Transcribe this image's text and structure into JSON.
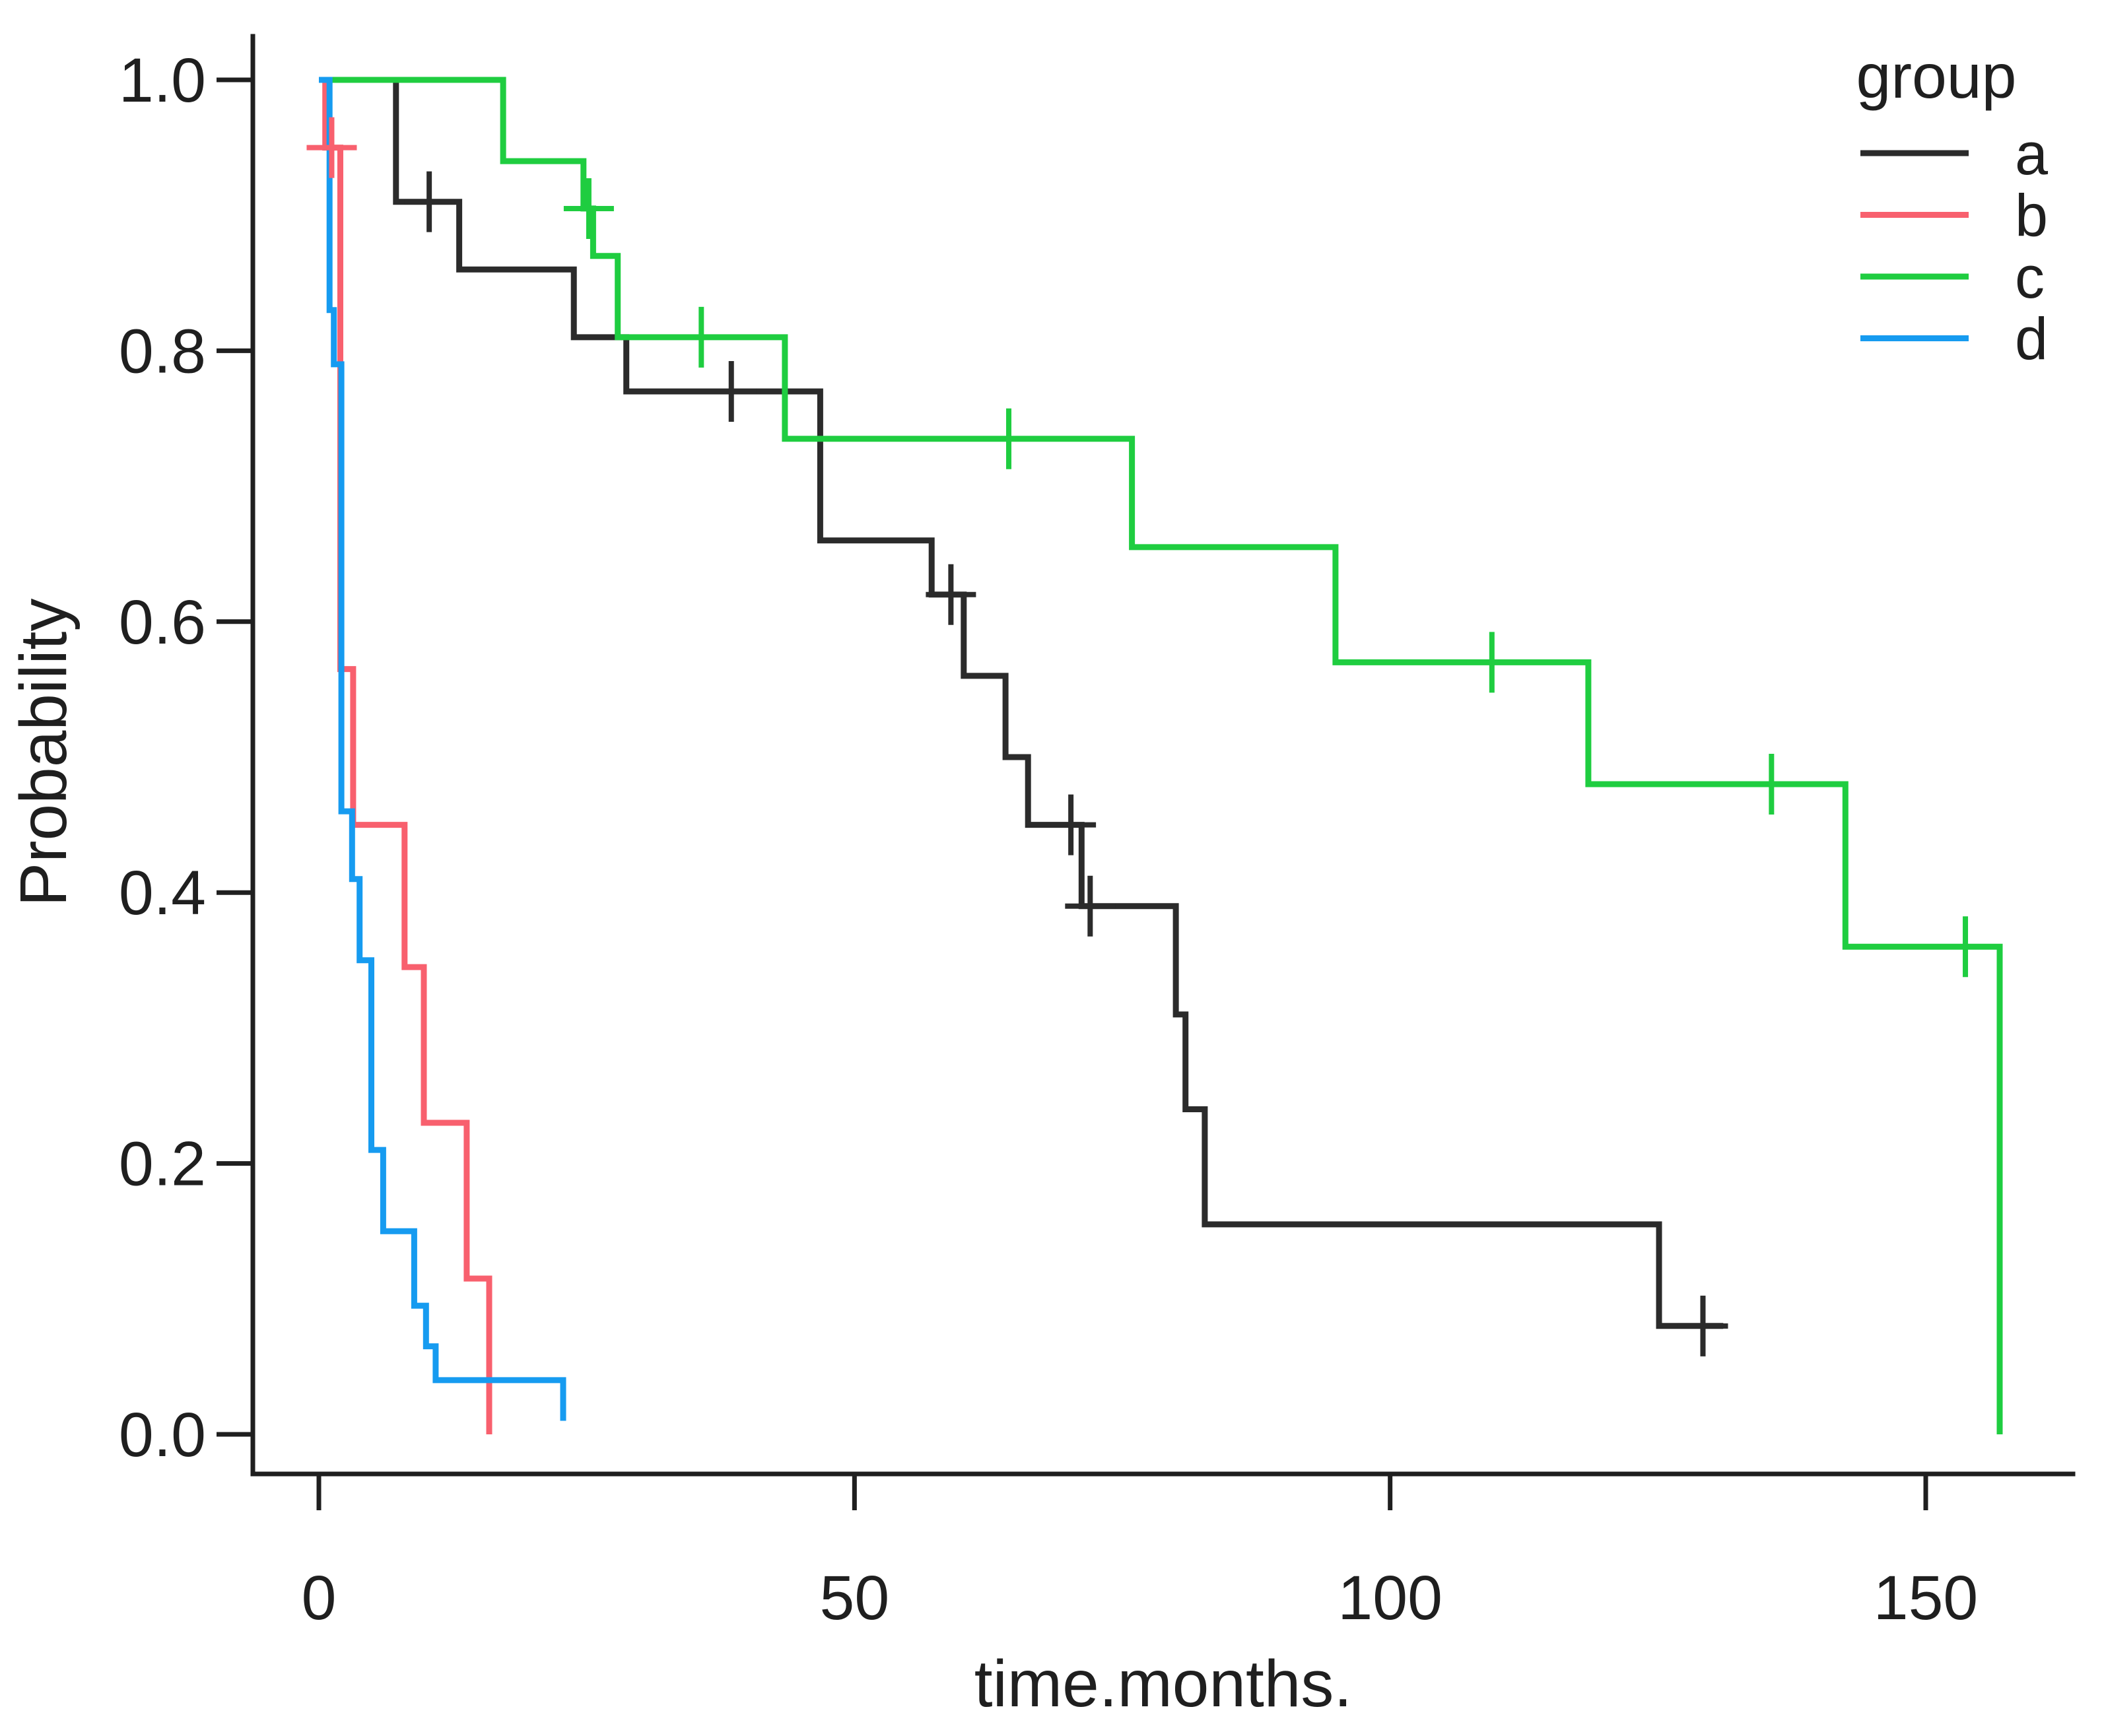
{
  "chart_data": {
    "type": "line",
    "subtype": "kaplan-meier-step",
    "title": "",
    "xlabel": "time.months.",
    "ylabel": "Probability",
    "legend_title": "group",
    "legend_position": "top-right",
    "grid": false,
    "xlim": [
      0,
      160
    ],
    "ylim": [
      0.0,
      1.0
    ],
    "xticks": [
      0,
      50,
      100,
      150
    ],
    "yticks": [
      0.0,
      0.2,
      0.4,
      0.6,
      0.8,
      1.0
    ],
    "series": [
      {
        "name": "a",
        "color": "#2b2b2b",
        "steps": [
          [
            0,
            1.0
          ],
          [
            7.2,
            0.91
          ],
          [
            13.1,
            0.86
          ],
          [
            23.8,
            0.81
          ],
          [
            28.7,
            0.77
          ],
          [
            46.8,
            0.66
          ],
          [
            57.2,
            0.62
          ],
          [
            60.2,
            0.56
          ],
          [
            64.1,
            0.5
          ],
          [
            66.2,
            0.45
          ],
          [
            71.2,
            0.39
          ],
          [
            80,
            0.31
          ],
          [
            80.9,
            0.24
          ],
          [
            82.7,
            0.155
          ],
          [
            125.1,
            0.08
          ]
        ],
        "end_time": 131.1,
        "censors": [
          [
            10.3,
            0.91
          ],
          [
            38.5,
            0.77
          ],
          [
            59,
            0.62
          ],
          [
            70.2,
            0.45
          ],
          [
            72,
            0.39
          ],
          [
            129.2,
            0.08
          ]
        ]
      },
      {
        "name": "b",
        "color": "#f8606e",
        "steps": [
          [
            0,
            1.0
          ],
          [
            0.6,
            0.95
          ],
          [
            2,
            0.565
          ],
          [
            3.2,
            0.45
          ],
          [
            8,
            0.345
          ],
          [
            9.8,
            0.23
          ],
          [
            13.8,
            0.115
          ],
          [
            15.9,
            0.0
          ]
        ],
        "end_time": 15.9,
        "censors": [
          [
            1.2,
            0.95
          ]
        ]
      },
      {
        "name": "c",
        "color": "#1fcd40",
        "steps": [
          [
            0,
            1.0
          ],
          [
            17.2,
            0.94
          ],
          [
            24.7,
            0.905
          ],
          [
            25.6,
            0.87
          ],
          [
            27.9,
            0.81
          ],
          [
            43.5,
            0.735
          ],
          [
            75.9,
            0.655
          ],
          [
            94.9,
            0.57
          ],
          [
            118.5,
            0.48
          ],
          [
            142.5,
            0.36
          ],
          [
            156.9,
            0.0
          ]
        ],
        "end_time": 156.9,
        "censors": [
          [
            25.2,
            0.905
          ],
          [
            35.7,
            0.81
          ],
          [
            64.4,
            0.735
          ],
          [
            109.5,
            0.57
          ],
          [
            135.6,
            0.48
          ],
          [
            153.7,
            0.36
          ]
        ]
      },
      {
        "name": "d",
        "color": "#169bf0",
        "steps": [
          [
            0,
            1.0
          ],
          [
            1,
            0.83
          ],
          [
            1.4,
            0.79
          ],
          [
            2.1,
            0.46
          ],
          [
            3.1,
            0.41
          ],
          [
            3.8,
            0.35
          ],
          [
            4.9,
            0.21
          ],
          [
            6,
            0.15
          ],
          [
            8.9,
            0.095
          ],
          [
            10,
            0.065
          ],
          [
            10.9,
            0.04
          ],
          [
            22.8,
            0.01
          ]
        ],
        "end_time": 22.8,
        "censors": []
      }
    ]
  }
}
